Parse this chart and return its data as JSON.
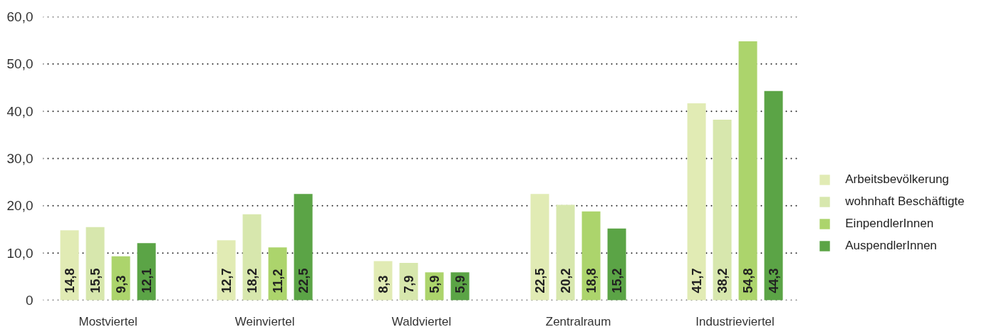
{
  "chart_data": {
    "type": "bar",
    "categories": [
      "Mostviertel",
      "Weinviertel",
      "Waldviertel",
      "Zentralraum",
      "Industrieviertel"
    ],
    "series": [
      {
        "name": "Arbeitsbevölkerung",
        "color": "#e1ebb4",
        "values": [
          14.8,
          12.7,
          8.3,
          22.5,
          41.7
        ],
        "value_labels": [
          "14,8",
          "12,7",
          "8,3",
          "22,5",
          "41,7"
        ]
      },
      {
        "name": "wohnhaft Beschäftigte",
        "color": "#d7e7ad",
        "values": [
          15.5,
          18.2,
          7.9,
          20.2,
          38.2
        ],
        "value_labels": [
          "15,5",
          "18,2",
          "7,9",
          "20,2",
          "38,2"
        ]
      },
      {
        "name": "EinpendlerInnen",
        "color": "#acd46c",
        "values": [
          9.3,
          11.2,
          5.9,
          18.8,
          54.8
        ],
        "value_labels": [
          "9,3",
          "11,2",
          "5,9",
          "18,8",
          "54,8"
        ]
      },
      {
        "name": "AuspendlerInnen",
        "color": "#5ba446",
        "values": [
          12.1,
          22.5,
          5.9,
          15.2,
          44.3
        ],
        "value_labels": [
          "12,1",
          "22,5",
          "5,9",
          "15,2",
          "44,3"
        ]
      }
    ],
    "ylim": [
      0,
      60
    ],
    "yticks": [
      0,
      {
        "value": 10,
        "label": "10,0"
      },
      {
        "value": 20,
        "label": "20,0"
      },
      {
        "value": 30,
        "label": "30,0"
      },
      {
        "value": 40,
        "label": "40,0"
      },
      {
        "value": 50,
        "label": "50,0"
      },
      {
        "value": 60,
        "label": "60,0"
      }
    ],
    "grid": "y",
    "legend": "right"
  }
}
